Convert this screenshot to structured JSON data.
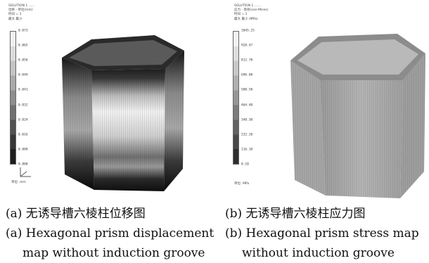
{
  "panel_a": {
    "header_lines": [
      "SOLUTION 1 ……",
      "位移 - 单位(mm)",
      "时间 = 1",
      "最大 最小"
    ],
    "legend": {
      "colors": [
        "#f0f0f0",
        "#dcdcdc",
        "#c4c4c4",
        "#aaaaaa",
        "#8e8e8e",
        "#707070",
        "#525252",
        "#363636",
        "#1e1e1e"
      ],
      "ticks": [
        "0.073",
        "0.065",
        "0.056",
        "0.049",
        "0.041",
        "0.032",
        "0.024",
        "0.016",
        "0.008",
        "0.000"
      ]
    },
    "axis_label": "单位: mm",
    "caption_cn": "(a) 无诱导槽六棱柱位移图",
    "caption_en_1": "(a) Hexagonal prism displacement",
    "caption_en_2": "map without induction groove"
  },
  "panel_b": {
    "header_lines": [
      "SOLUTION 1 ……",
      "应力 - 等效(von-Mises)",
      "时间 = 1",
      "最大 最小 (MPa)"
    ],
    "legend": {
      "colors": [
        "#f2f2f2",
        "#dedede",
        "#c8c8c8",
        "#b0b0b0",
        "#969696",
        "#7c7c7c",
        "#626262",
        "#484848",
        "#2e2e2e"
      ],
      "ticks": [
        "1045.25",
        "928.47",
        "812.70",
        "696.60",
        "580.50",
        "464.40",
        "348.30",
        "232.20",
        "116.10",
        "0.10"
      ]
    },
    "axis_label": "单位: MPa",
    "caption_cn": "(b) 无诱导槽六棱柱应力图",
    "caption_en_1": "(b) Hexagonal prism stress map",
    "caption_en_2": "without induction groove"
  }
}
